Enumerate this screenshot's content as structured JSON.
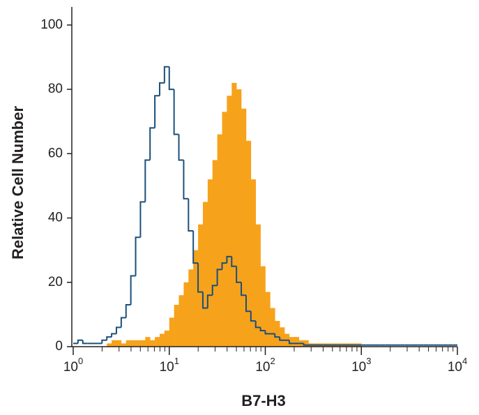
{
  "chart_data": {
    "type": "histogram",
    "xlabel": "B7-H3",
    "ylabel": "Relative Cell Number",
    "xscale": "log",
    "xlim": [
      1,
      10000
    ],
    "ylim": [
      0,
      103
    ],
    "xticks": [
      {
        "value": 1,
        "label": "10",
        "exponent": "0"
      },
      {
        "value": 10,
        "label": "10",
        "exponent": "1"
      },
      {
        "value": 100,
        "label": "10",
        "exponent": "2"
      },
      {
        "value": 1000,
        "label": "10",
        "exponent": "3"
      },
      {
        "value": 10000,
        "label": "10",
        "exponent": "4"
      }
    ],
    "xminorticks": true,
    "yticks": [
      0,
      20,
      40,
      60,
      80,
      100
    ],
    "bins": [
      1,
      1.122,
      1.259,
      1.413,
      1.585,
      1.778,
      1.995,
      2.239,
      2.512,
      2.818,
      3.162,
      3.548,
      3.981,
      4.467,
      5.012,
      5.623,
      6.31,
      7.079,
      7.943,
      8.913,
      10,
      11.22,
      12.59,
      14.13,
      15.85,
      17.78,
      19.95,
      22.39,
      25.12,
      28.18,
      31.62,
      35.48,
      39.81,
      44.67,
      50.12,
      56.23,
      63.1,
      70.79,
      79.43,
      89.13,
      100,
      112.2,
      125.9,
      141.3,
      158.5,
      177.8,
      199.5,
      223.9,
      251.2,
      281.8,
      316.2,
      354.8,
      398.1,
      446.7,
      501.2,
      562.3,
      631,
      707.9,
      794.3,
      891.3,
      1000,
      1122,
      1259,
      1413,
      1585,
      1778,
      1995,
      2239,
      2512,
      2818,
      3162,
      3548,
      3981,
      4467,
      5012,
      5623,
      6310,
      7079,
      7943,
      8913,
      10000
    ],
    "series": [
      {
        "color": "#f7a21b",
        "style": "filled",
        "values": [
          0,
          0,
          0,
          0,
          0,
          0,
          0,
          1,
          2,
          2,
          1,
          2,
          2,
          2,
          2,
          3,
          2,
          3,
          4,
          5,
          9,
          13,
          16,
          20,
          24,
          30,
          38,
          45,
          52,
          58,
          66,
          73,
          78,
          82,
          80,
          74,
          64,
          52,
          38,
          25,
          17,
          12,
          8,
          6,
          4,
          3,
          3,
          2,
          2,
          1,
          1,
          1,
          1,
          1,
          1,
          1,
          1,
          1,
          1,
          1,
          0,
          0,
          0,
          0,
          0,
          0,
          0,
          0,
          0,
          0,
          0,
          0,
          0,
          0,
          0,
          0,
          0,
          0,
          0,
          0
        ]
      },
      {
        "color": "#1b4f7a",
        "style": "outline",
        "values": [
          1,
          2,
          1,
          1,
          1,
          1,
          2,
          3,
          4,
          6,
          9,
          13,
          22,
          34,
          45,
          58,
          68,
          78,
          82,
          87,
          80,
          66,
          58,
          46,
          36,
          26,
          17,
          12,
          16,
          19,
          24,
          26,
          28,
          25,
          20,
          16,
          11,
          8,
          6,
          5,
          4,
          4,
          3,
          2,
          2,
          1,
          1,
          1,
          0.5,
          0.5,
          0.5,
          0.5,
          0.5,
          0.5,
          0.5,
          0.5,
          0.5,
          0.5,
          0.5,
          0.5,
          0.5,
          0.5,
          0.5,
          0.5,
          0.5,
          0.5,
          0.5,
          0.5,
          0.5,
          0.5,
          0.5,
          0.5,
          0.5,
          0.5,
          0.5,
          0.5,
          0.5,
          0.5,
          0.5,
          0.5
        ]
      }
    ]
  }
}
